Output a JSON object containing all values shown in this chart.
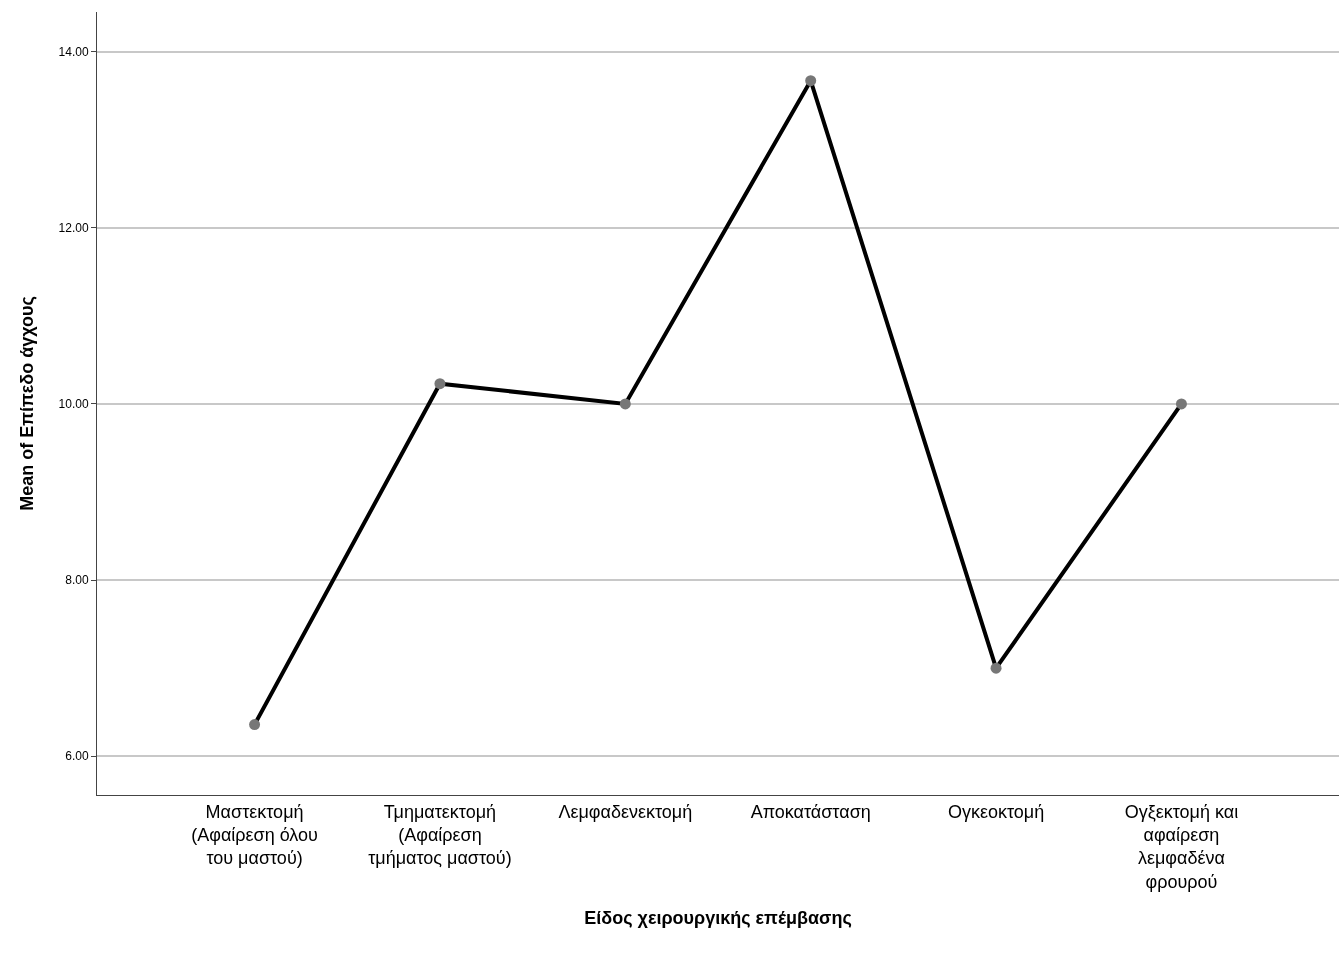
{
  "chart_data": {
    "type": "line",
    "xlabel": "Είδος χειρουργικής επέμβασης",
    "ylabel": "Mean of Επίπεδο άγχους",
    "categories": [
      "Μαστεκτομή\n(Αφαίρεση όλου\nτου μαστού)",
      "Τμηματεκτομή\n(Αφαίρεση\nτμήματος μαστού)",
      "Λεμφαδενεκτομή",
      "Αποκατάσταση",
      "Ογκεοκτομή",
      "Ογξεκτομή και\nαφαίρεση\nλεμφαδένα\nφρουρού"
    ],
    "series": [
      {
        "color": "#000000",
        "values": [
          6.36,
          10.23,
          10.0,
          13.67,
          7.0,
          10.0
        ]
      }
    ],
    "marker": "circle",
    "ylim": [
      5.56,
      14.45
    ],
    "yticks": [
      {
        "value": 6,
        "label": "6.00"
      },
      {
        "value": 8,
        "label": "8.00"
      },
      {
        "value": 10,
        "label": "10.00"
      },
      {
        "value": 12,
        "label": "12.00"
      },
      {
        "value": 14,
        "label": "14.00"
      }
    ],
    "grid": "y"
  }
}
